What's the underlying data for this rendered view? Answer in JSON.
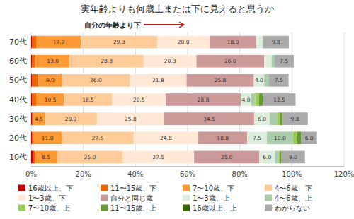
{
  "chart_data": {
    "type": "bar",
    "orientation": "horizontal",
    "stacked": true,
    "title": "実年齢よりも何歳上または下に見えると思うか",
    "annotation": "自分の年齢より下",
    "categories": [
      "10代",
      "20代",
      "30代",
      "40代",
      "50代",
      "60代",
      "70代"
    ],
    "series": [
      {
        "name": "16歳以上、下",
        "color": "#cc0000",
        "values": [
          1.0,
          0.3,
          0.3,
          0.3,
          0.3,
          0.3,
          0.3
        ],
        "value_labels": [
          null,
          null,
          null,
          null,
          null,
          null,
          null
        ]
      },
      {
        "name": "11〜15歳、下",
        "color": "#ee6600",
        "values": [
          0.5,
          0.5,
          0.4,
          1.8,
          2.5,
          1.5,
          1.8
        ],
        "value_labels": [
          null,
          null,
          null,
          null,
          null,
          null,
          null
        ]
      },
      {
        "name": "7〜10歳、下",
        "color": "#ff9933",
        "values": [
          8.5,
          11.0,
          4.5,
          10.5,
          9.0,
          13.0,
          17.0
        ],
        "value_labels": [
          "8.5",
          "11.0",
          "4.5",
          "10.5",
          "9.0",
          "13.0",
          "17.0"
        ]
      },
      {
        "name": "4〜6歳、下",
        "color": "#ffcc99",
        "values": [
          25.0,
          27.5,
          20.0,
          18.5,
          26.0,
          28.3,
          29.3
        ],
        "value_labels": [
          "25.0",
          "27.5",
          "20.0",
          "18.5",
          "26.0",
          "28.3",
          "29.3"
        ]
      },
      {
        "name": "1〜3歳、下",
        "color": "#ffe8d5",
        "values": [
          27.5,
          24.8,
          25.8,
          20.5,
          21.8,
          20.3,
          20.0
        ],
        "value_labels": [
          "27.5",
          "24.8",
          "25.8",
          "20.5",
          "21.8",
          "20.3",
          "20.0"
        ]
      },
      {
        "name": "自分と同じ歳",
        "color": "#cc9999",
        "values": [
          25.0,
          18.8,
          34.5,
          28.8,
          25.8,
          26.0,
          18.0
        ],
        "value_labels": [
          "25.0",
          "18.8",
          "34.5",
          "28.8",
          "25.8",
          "26.0",
          "18.0"
        ]
      },
      {
        "name": "1〜3歳、上",
        "color": "#ddeedd",
        "values": [
          6.0,
          7.5,
          6.0,
          4.0,
          4.0,
          2.8,
          2.3
        ],
        "value_labels": [
          "6.0",
          "7.5",
          "6.0",
          "4.0",
          "4.0",
          null,
          null
        ]
      },
      {
        "name": "4〜6歳、上",
        "color": "#aaccaa",
        "values": [
          1.5,
          10.0,
          3.0,
          1.5,
          1.8,
          1.0,
          0.3
        ],
        "value_labels": [
          null,
          "10.0",
          null,
          null,
          null,
          null,
          null
        ]
      },
      {
        "name": "7〜10歳、上",
        "color": "#99cc55",
        "values": [
          0.5,
          1.6,
          0.9,
          1.5,
          0.0,
          0.0,
          0.0
        ],
        "value_labels": [
          null,
          null,
          null,
          null,
          null,
          null,
          null
        ]
      },
      {
        "name": "11〜15歳、上",
        "color": "#669933",
        "values": [
          0.5,
          1.6,
          0.9,
          1.5,
          0.0,
          0.0,
          0.0
        ],
        "value_labels": [
          null,
          null,
          null,
          null,
          null,
          null,
          null
        ]
      },
      {
        "name": "16歳以上、上",
        "color": "#336600",
        "values": [
          0.0,
          0.0,
          0.0,
          0.0,
          0.0,
          0.0,
          0.0
        ],
        "value_labels": [
          null,
          null,
          null,
          null,
          null,
          null,
          null
        ]
      },
      {
        "name": "わからない",
        "color": "#aaaaaa",
        "values": [
          9.0,
          6.0,
          9.8,
          12.5,
          7.5,
          7.5,
          9.8
        ],
        "value_labels": [
          "9.0",
          "6.0",
          "9.8",
          "12.5",
          "7.5",
          "7.5",
          "9.8"
        ]
      }
    ],
    "xlim": [
      0,
      120
    ],
    "xticks": [
      {
        "value": 0,
        "label": "0%"
      },
      {
        "value": 20,
        "label": "20%"
      },
      {
        "value": 40,
        "label": "40%"
      },
      {
        "value": 60,
        "label": "60%"
      },
      {
        "value": 80,
        "label": "80%"
      },
      {
        "value": 100,
        "label": "100%"
      },
      {
        "value": 120,
        "label": "120%"
      }
    ],
    "grid": true,
    "legend": "bottom",
    "data_labels": true
  }
}
